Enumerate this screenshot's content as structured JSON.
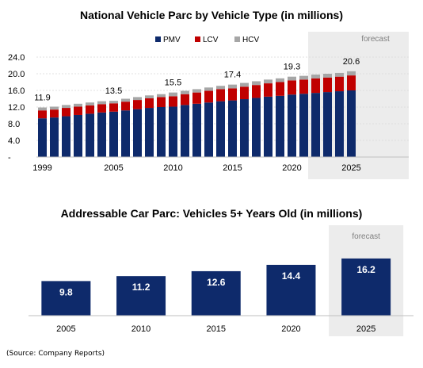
{
  "colors": {
    "pmv": "#0e2a6b",
    "lcv": "#c00000",
    "hcv": "#a6a6a6",
    "forecast_bg": "#ececec",
    "bar2": "#0e2a6b"
  },
  "source": "(Source: Company Reports)",
  "chart_data": [
    {
      "type": "bar",
      "stacked": true,
      "title": "National Vehicle Parc by Vehicle Type (in millions)",
      "legend": [
        "PMV",
        "LCV",
        "HCV"
      ],
      "legend_position": "top",
      "forecast_label": "forecast",
      "forecast_from": 2022,
      "ylim": [
        0,
        24
      ],
      "yticks": [
        "-",
        "4.0",
        "8.0",
        "12.0",
        "16.0",
        "20.0",
        "24.0"
      ],
      "xticks": [
        "1999",
        "2005",
        "2010",
        "2015",
        "2020",
        "2025"
      ],
      "categories": [
        1999,
        2000,
        2001,
        2002,
        2003,
        2004,
        2005,
        2006,
        2007,
        2008,
        2009,
        2010,
        2011,
        2012,
        2013,
        2014,
        2015,
        2016,
        2017,
        2018,
        2019,
        2020,
        2021,
        2022,
        2023,
        2024,
        2025
      ],
      "series": [
        {
          "name": "PMV",
          "values": [
            9.3,
            9.5,
            9.8,
            10.1,
            10.4,
            10.7,
            10.9,
            11.2,
            11.5,
            11.8,
            12.0,
            12.1,
            12.5,
            12.8,
            13.1,
            13.4,
            13.6,
            13.9,
            14.2,
            14.5,
            14.7,
            15.0,
            15.2,
            15.4,
            15.6,
            15.8,
            16.0
          ]
        },
        {
          "name": "LCV",
          "values": [
            1.9,
            1.9,
            2.0,
            2.0,
            2.0,
            2.0,
            2.0,
            2.1,
            2.2,
            2.3,
            2.4,
            2.5,
            2.6,
            2.7,
            2.8,
            2.9,
            2.9,
            3.0,
            3.1,
            3.2,
            3.3,
            3.4,
            3.4,
            3.5,
            3.5,
            3.5,
            3.6
          ]
        },
        {
          "name": "HCV",
          "values": [
            0.7,
            0.7,
            0.7,
            0.7,
            0.7,
            0.7,
            0.6,
            0.7,
            0.7,
            0.7,
            0.7,
            0.9,
            0.8,
            0.8,
            0.8,
            0.8,
            0.9,
            0.9,
            0.9,
            0.9,
            0.9,
            0.9,
            0.9,
            0.9,
            0.9,
            0.9,
            1.0
          ]
        }
      ],
      "data_labels": [
        {
          "year": 1999,
          "text": "11.9"
        },
        {
          "year": 2005,
          "text": "13.5"
        },
        {
          "year": 2010,
          "text": "15.5"
        },
        {
          "year": 2015,
          "text": "17.4"
        },
        {
          "year": 2020,
          "text": "19.3"
        },
        {
          "year": 2025,
          "text": "20.6"
        }
      ]
    },
    {
      "type": "bar",
      "title": "Addressable Car Parc: Vehicles 5+ Years Old (in millions)",
      "forecast_label": "forecast",
      "categories": [
        "2005",
        "2010",
        "2015",
        "2020",
        "2025"
      ],
      "values": [
        9.8,
        11.2,
        12.6,
        14.4,
        16.2
      ],
      "labels": [
        "9.8",
        "11.2",
        "12.6",
        "14.4",
        "16.2"
      ],
      "forecast_index": 4
    }
  ]
}
